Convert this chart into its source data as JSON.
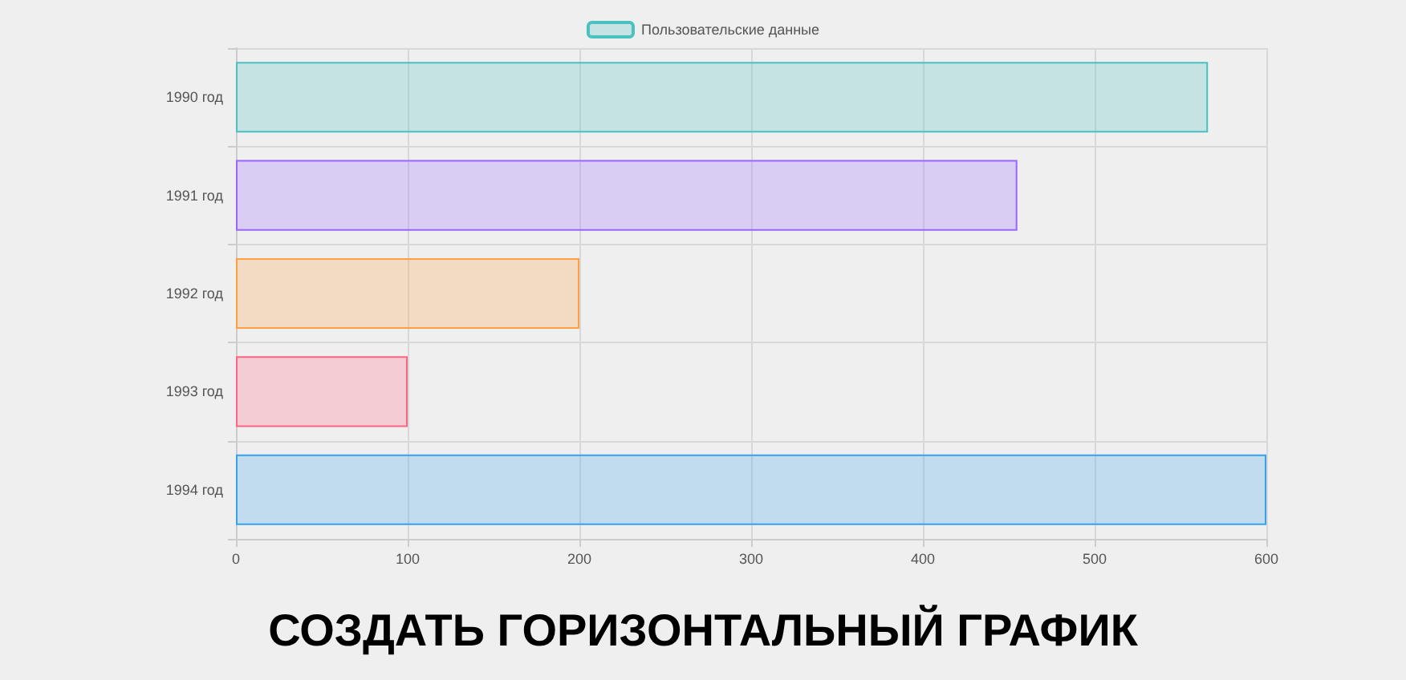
{
  "chart_data": {
    "type": "bar",
    "orientation": "horizontal",
    "title": "СОЗДАТЬ ГОРИЗОНТАЛЬНЫЙ ГРАФИК",
    "categories": [
      "1990 год",
      "1991 год",
      "1992 год",
      "1993 год",
      "1994 год"
    ],
    "series": [
      {
        "name": "Пользовательские данные",
        "values": [
          566,
          455,
          200,
          100,
          600
        ],
        "colors": [
          "#4bc0c0",
          "#9966ff",
          "#ff9f40",
          "#ff6384",
          "#36a2eb"
        ]
      }
    ],
    "xlim": [
      0,
      600
    ],
    "xticks": [
      0,
      100,
      200,
      300,
      400,
      500,
      600
    ],
    "grid": true,
    "legend": "top"
  }
}
